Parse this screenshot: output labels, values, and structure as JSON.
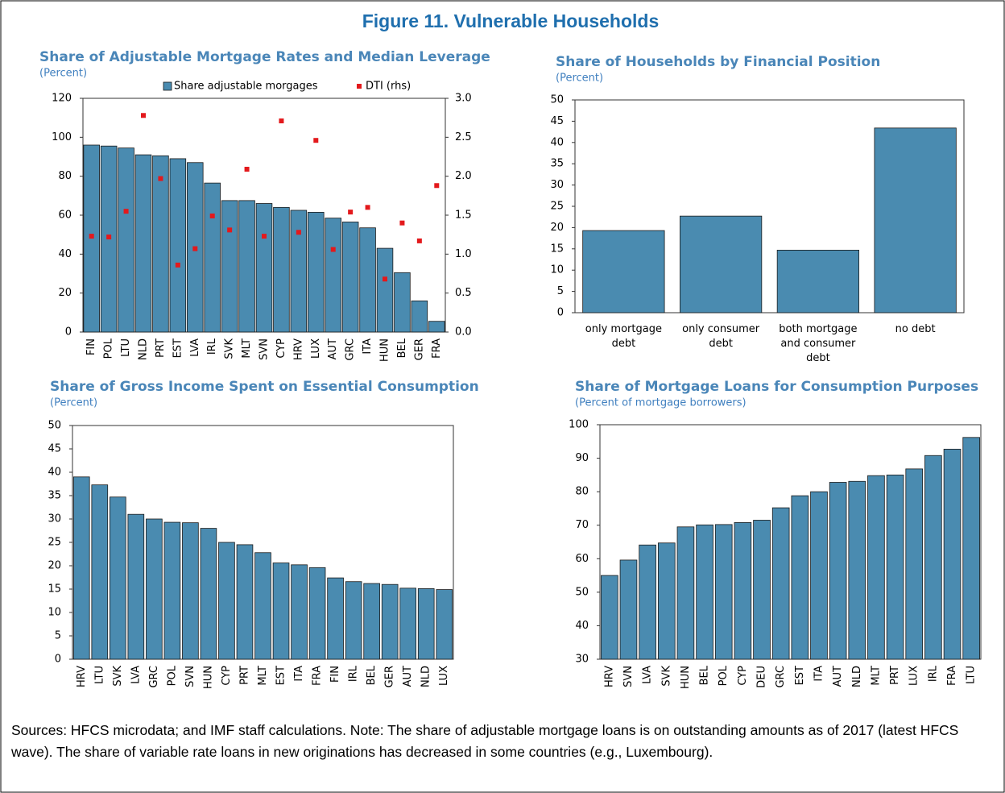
{
  "title": "Figure 11. Vulnerable Households",
  "note": "Sources: HFCS microdata; and IMF staff calculations. Note: The share of adjustable mortgage loans is on outstanding amounts as of 2017 (latest HFCS wave). The share of variable rate loans in new originations has decreased in some countries (e.g., Luxembourg).",
  "chart_data": [
    {
      "type": "bar",
      "title": "Share of Adjustable Mortgage Rates and Median Leverage",
      "subtitle": "(Percent)",
      "categories": [
        "FIN",
        "POL",
        "LTU",
        "NLD",
        "PRT",
        "EST",
        "LVA",
        "IRL",
        "SVK",
        "MLT",
        "SVN",
        "CYP",
        "HRV",
        "LUX",
        "AUT",
        "GRC",
        "ITA",
        "HUN",
        "BEL",
        "GER",
        "FRA"
      ],
      "series": [
        {
          "name": "Share adjustable morgages",
          "type": "bar",
          "color": "#4a8bb0",
          "values": [
            96,
            95.5,
            94.5,
            91,
            90.5,
            89,
            87,
            76.5,
            67.5,
            67.5,
            66,
            64,
            62.5,
            61.5,
            58.5,
            56.5,
            53.5,
            43,
            30.5,
            16,
            5.5
          ]
        },
        {
          "name": "DTI (rhs)",
          "type": "scatter",
          "axis": "y2",
          "color": "#e3191c",
          "values": [
            1.23,
            1.22,
            1.55,
            2.78,
            1.97,
            0.86,
            1.07,
            1.49,
            1.31,
            2.09,
            1.23,
            2.71,
            1.28,
            2.46,
            1.06,
            1.54,
            1.6,
            0.68,
            1.4,
            1.17,
            1.88
          ]
        }
      ],
      "ylim": [
        0,
        120
      ],
      "yticks": [
        0,
        20,
        40,
        60,
        80,
        100,
        120
      ],
      "y2lim": [
        0,
        3
      ],
      "y2ticks": [
        {
          "value": 0,
          "label": "0.0"
        },
        0.5,
        {
          "value": 1,
          "label": "1.0"
        },
        1.5,
        {
          "value": 2,
          "label": "2.0"
        },
        2.5,
        {
          "value": 3,
          "label": "3.0"
        }
      ]
    },
    {
      "type": "bar",
      "title": "Share of Households by Financial Position",
      "subtitle": "(Percent)",
      "categories": [
        "only mortgage debt",
        "only consumer debt",
        "both mortgage and consumer debt",
        "no debt"
      ],
      "values": [
        19.3,
        22.7,
        14.7,
        43.4
      ],
      "color": "#4a8bb0",
      "ylim": [
        0,
        50
      ],
      "yticks": [
        0,
        5,
        10,
        15,
        20,
        25,
        30,
        35,
        40,
        45,
        50
      ]
    },
    {
      "type": "bar",
      "title": "Share of Gross Income Spent on Essential Consumption",
      "subtitle": "(Percent)",
      "categories": [
        "HRV",
        "LTU",
        "SVK",
        "LVA",
        "GRC",
        "POL",
        "SVN",
        "HUN",
        "CYP",
        "PRT",
        "MLT",
        "EST",
        "ITA",
        "FRA",
        "FIN",
        "IRL",
        "BEL",
        "GER",
        "AUT",
        "NLD",
        "LUX"
      ],
      "values": [
        39,
        37.3,
        34.7,
        31,
        30,
        29.3,
        29.2,
        28,
        25,
        24.5,
        22.8,
        20.6,
        20.2,
        19.6,
        17.4,
        16.6,
        16.2,
        16,
        15.2,
        15.1,
        14.9
      ],
      "color": "#4a8bb0",
      "ylim": [
        0,
        50
      ],
      "yticks": [
        0,
        5,
        10,
        15,
        20,
        25,
        30,
        35,
        40,
        45,
        50
      ]
    },
    {
      "type": "bar",
      "title": "Share of Mortgage Loans for Consumption Purposes",
      "subtitle": "(Percent of mortgage borrowers)",
      "categories": [
        "HRV",
        "SVN",
        "LVA",
        "SVK",
        "HUN",
        "BEL",
        "POL",
        "CYP",
        "DEU",
        "GRC",
        "EST",
        "ITA",
        "AUT",
        "NLD",
        "MLT",
        "PRT",
        "LUX",
        "IRL",
        "FRA",
        "LTU"
      ],
      "values": [
        55,
        59.6,
        64.1,
        64.7,
        69.5,
        70.1,
        70.2,
        70.8,
        71.5,
        75.2,
        78.8,
        80,
        82.8,
        83.1,
        84.8,
        85,
        86.8,
        90.8,
        92.7,
        96.2
      ],
      "color": "#4a8bb0",
      "ylim": [
        30,
        100
      ],
      "yticks": [
        30,
        40,
        50,
        60,
        70,
        80,
        90,
        100
      ]
    }
  ]
}
